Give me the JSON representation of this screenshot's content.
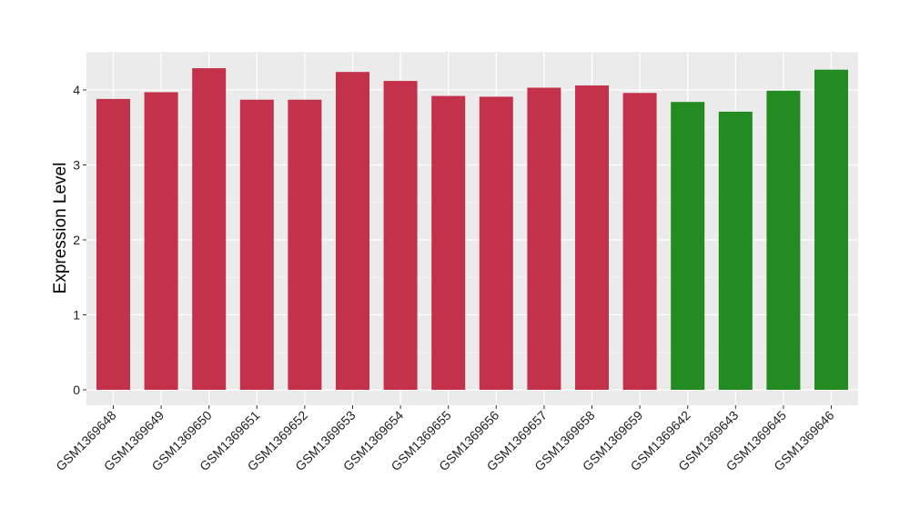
{
  "chart_data": {
    "type": "bar",
    "title": "",
    "xlabel": "",
    "ylabel": "Expression Level",
    "ylim": [
      0,
      4.5
    ],
    "yticks": [
      0,
      1,
      2,
      3,
      4
    ],
    "grid": true,
    "background": "#ebebeb",
    "categories": [
      "GSM1369648",
      "GSM1369649",
      "GSM1369650",
      "GSM1369651",
      "GSM1369652",
      "GSM1369653",
      "GSM1369654",
      "GSM1369655",
      "GSM1369656",
      "GSM1369657",
      "GSM1369658",
      "GSM1369659",
      "GSM1369642",
      "GSM1369643",
      "GSM1369645",
      "GSM1369646"
    ],
    "values": [
      3.88,
      3.97,
      4.29,
      3.87,
      3.87,
      4.24,
      4.12,
      3.92,
      3.91,
      4.03,
      4.06,
      3.96,
      3.84,
      3.71,
      3.99,
      4.27
    ],
    "groups": [
      "red",
      "red",
      "red",
      "red",
      "red",
      "red",
      "red",
      "red",
      "red",
      "red",
      "red",
      "red",
      "green",
      "green",
      "green",
      "green"
    ],
    "colors": {
      "red": "#c4314b",
      "green": "#228b22"
    }
  }
}
